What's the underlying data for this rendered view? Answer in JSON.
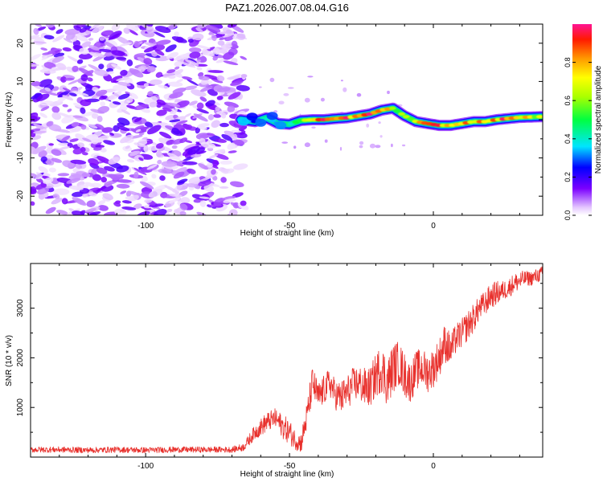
{
  "title": "PAZ1.2026.007.08.04.G16",
  "colors": {
    "trace": "#e8302c",
    "noise": "#8a2be2",
    "axis": "#000000"
  },
  "chart_data": [
    {
      "type": "heatmap",
      "name": "spectrogram",
      "xlabel": "Height of straight line (km)",
      "ylabel": "Frequency (Hz)",
      "xlim": [
        -140,
        38
      ],
      "ylim": [
        -25,
        25
      ],
      "x_ticks": [
        -100,
        -50,
        0
      ],
      "x_tick_labels": [
        "-100",
        "-50",
        "0"
      ],
      "y_ticks": [
        -20,
        -10,
        0,
        10,
        20
      ],
      "y_tick_labels": [
        "-20",
        "-10",
        "0",
        "10",
        "20"
      ],
      "colorbar": {
        "label": "Normalized spectral amplitude",
        "range": [
          0,
          1
        ],
        "ticks": [
          0.0,
          0.2,
          0.4,
          0.6,
          0.8
        ],
        "tick_labels": [
          "0.0",
          "0.2",
          "0.4",
          "0.6",
          "0.8"
        ]
      },
      "noise_region_x": [
        -140,
        -66
      ],
      "ridge": {
        "x": [
          -67,
          -62,
          -58,
          -54,
          -50,
          -46,
          -42,
          -38,
          -34,
          -30,
          -26,
          -22,
          -18,
          -14,
          -10,
          -6,
          -2,
          2,
          6,
          10,
          14,
          18,
          22,
          26,
          30,
          34,
          38
        ],
        "freq": [
          0.0,
          -0.5,
          0.5,
          -1.0,
          -1.2,
          -0.2,
          0.0,
          0.0,
          0.3,
          0.5,
          1.0,
          1.5,
          2.5,
          3.0,
          1.0,
          -0.5,
          -1.0,
          -1.5,
          -1.5,
          -1.0,
          -0.5,
          -0.5,
          0.0,
          0.3,
          0.6,
          0.7,
          0.8
        ],
        "amplitude": [
          0.4,
          0.3,
          0.45,
          0.35,
          0.5,
          0.6,
          0.8,
          0.95,
          0.9,
          0.95,
          0.85,
          1.0,
          0.9,
          0.7,
          0.6,
          0.75,
          0.9,
          0.95,
          0.8,
          0.85,
          0.9,
          0.8,
          0.9,
          0.95,
          0.85,
          0.75,
          0.7
        ]
      }
    },
    {
      "type": "line",
      "name": "snr",
      "xlabel": "Height of straight line (km)",
      "ylabel": "SNR (10 * v/v)",
      "xlim": [
        -140,
        38
      ],
      "ylim": [
        0,
        3900
      ],
      "x_ticks": [
        -100,
        -50,
        0
      ],
      "x_tick_labels": [
        "-100",
        "-50",
        "0"
      ],
      "y_ticks": [
        1000,
        2000,
        3000
      ],
      "y_tick_labels": [
        "1000",
        "2000",
        "3000"
      ],
      "series": [
        {
          "name": "SNR",
          "x": [
            -140,
            -130,
            -120,
            -110,
            -100,
            -90,
            -80,
            -70,
            -66,
            -62,
            -58,
            -55,
            -52,
            -50,
            -48,
            -46,
            -44,
            -42,
            -40,
            -38,
            -36,
            -34,
            -32,
            -30,
            -28,
            -26,
            -24,
            -22,
            -20,
            -18,
            -16,
            -14,
            -12,
            -10,
            -8,
            -6,
            -4,
            -2,
            0,
            2,
            4,
            6,
            8,
            10,
            12,
            14,
            16,
            18,
            20,
            22,
            24,
            26,
            28,
            30,
            32,
            34,
            36,
            38
          ],
          "y": [
            150,
            150,
            140,
            150,
            140,
            150,
            150,
            150,
            200,
            500,
            700,
            780,
            600,
            500,
            350,
            280,
            800,
            1500,
            1200,
            1350,
            1500,
            1250,
            1200,
            1300,
            1450,
            1500,
            1400,
            1400,
            1650,
            1800,
            1500,
            1800,
            1900,
            1650,
            1500,
            1750,
            1800,
            1700,
            1800,
            2000,
            2300,
            2150,
            2400,
            2500,
            2650,
            2800,
            3000,
            3100,
            3250,
            3300,
            3350,
            3400,
            3500,
            3550,
            3600,
            3600,
            3650,
            3700
          ],
          "noise_amplitude": [
            60,
            60,
            60,
            60,
            60,
            60,
            60,
            60,
            80,
            150,
            200,
            200,
            250,
            250,
            200,
            200,
            300,
            350,
            300,
            300,
            300,
            300,
            350,
            350,
            350,
            350,
            400,
            400,
            450,
            500,
            500,
            500,
            450,
            450,
            400,
            400,
            400,
            400,
            400,
            400,
            400,
            350,
            300,
            300,
            300,
            300,
            250,
            250,
            250,
            250,
            200,
            200,
            200,
            200,
            150,
            150,
            150,
            150
          ]
        }
      ]
    }
  ]
}
